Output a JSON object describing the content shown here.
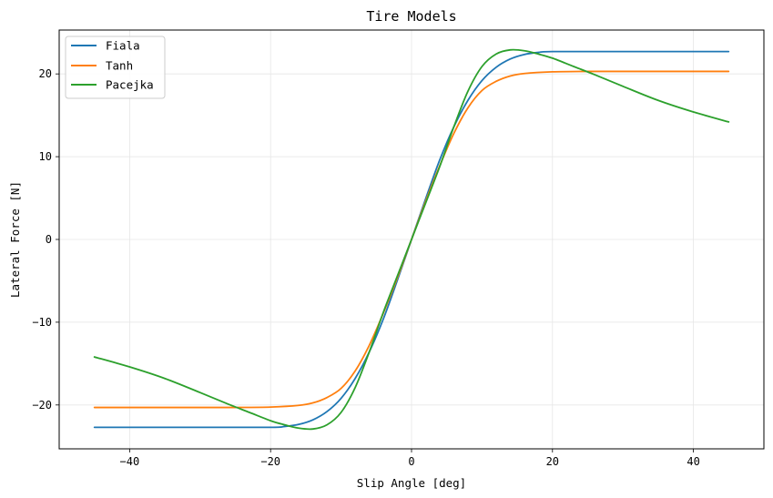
{
  "chart_data": {
    "type": "line",
    "title": "Tire Models",
    "xlabel": "Slip Angle [deg]",
    "ylabel": "Lateral Force [N]",
    "xlim": [
      -50,
      50
    ],
    "ylim": [
      -25.3,
      25.3
    ],
    "xticks": [
      -40,
      -20,
      0,
      20,
      40
    ],
    "yticks": [
      -20,
      -10,
      0,
      10,
      20
    ],
    "xtick_labels": [
      "−40",
      "−20",
      "0",
      "20",
      "40"
    ],
    "ytick_labels": [
      "−20",
      "−10",
      "0",
      "10",
      "20"
    ],
    "grid": true,
    "legend_position": "upper-left",
    "series": [
      {
        "name": "Fiala",
        "color": "#1f77b4",
        "x": [
          -45,
          -30,
          -20,
          -18,
          -16,
          -14,
          -12,
          -10,
          -8,
          -6,
          -4,
          -2,
          0,
          2,
          4,
          6,
          8,
          10,
          12,
          14,
          16,
          18,
          20,
          30,
          45
        ],
        "y": [
          -22.7,
          -22.7,
          -22.7,
          -22.6,
          -22.35,
          -21.8,
          -20.8,
          -19.2,
          -16.8,
          -13.6,
          -9.6,
          -4.9,
          0,
          4.9,
          9.6,
          13.6,
          16.8,
          19.2,
          20.8,
          21.8,
          22.35,
          22.6,
          22.7,
          22.7,
          22.7
        ]
      },
      {
        "name": "Tanh",
        "color": "#ff7f0e",
        "x": [
          -45,
          -30,
          -25,
          -20,
          -16,
          -14,
          -12,
          -10,
          -8,
          -6,
          -4,
          -2,
          0,
          2,
          4,
          6,
          8,
          10,
          12,
          14,
          16,
          20,
          25,
          30,
          45
        ],
        "y": [
          -20.3,
          -20.3,
          -20.3,
          -20.25,
          -20.05,
          -19.75,
          -19.1,
          -18.0,
          -15.9,
          -12.8,
          -8.9,
          -4.6,
          0,
          4.6,
          8.9,
          12.8,
          15.9,
          18.0,
          19.1,
          19.75,
          20.05,
          20.25,
          20.3,
          20.3,
          20.3
        ]
      },
      {
        "name": "Pacejka",
        "color": "#2ca02c",
        "x": [
          -45,
          -40,
          -35,
          -30,
          -26,
          -23,
          -20,
          -18,
          -16,
          -14,
          -12,
          -10,
          -8,
          -6,
          -4,
          -2,
          0,
          2,
          4,
          6,
          8,
          10,
          12,
          14,
          16,
          18,
          20,
          23,
          26,
          30,
          35,
          40,
          45
        ],
        "y": [
          -14.2,
          -15.4,
          -16.8,
          -18.5,
          -19.9,
          -20.9,
          -21.9,
          -22.4,
          -22.8,
          -22.9,
          -22.4,
          -20.9,
          -17.9,
          -13.6,
          -8.8,
          -4.4,
          0,
          4.4,
          8.8,
          13.6,
          17.9,
          20.9,
          22.4,
          22.9,
          22.8,
          22.4,
          21.9,
          20.9,
          19.9,
          18.5,
          16.8,
          15.4,
          14.2
        ]
      }
    ]
  }
}
